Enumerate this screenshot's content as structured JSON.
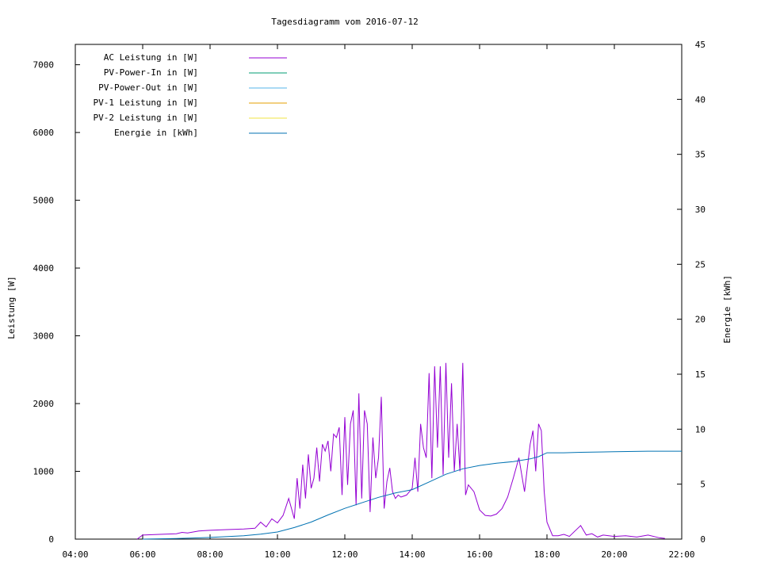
{
  "chart_data": {
    "type": "line",
    "title": "Tagesdiagramm vom 2016-07-12",
    "xlabel": "",
    "ylabel": "Leistung [W]",
    "y2label": "Energie [kWh]",
    "xlim": [
      "04:00",
      "22:00"
    ],
    "x_ticks": [
      "04:00",
      "06:00",
      "08:00",
      "10:00",
      "12:00",
      "14:00",
      "16:00",
      "18:00",
      "20:00",
      "22:00"
    ],
    "ylim": [
      0,
      7300
    ],
    "y_ticks": [
      0,
      1000,
      2000,
      3000,
      4000,
      5000,
      6000,
      7000
    ],
    "y2lim": [
      0,
      45
    ],
    "y2_ticks": [
      0,
      5,
      10,
      15,
      20,
      25,
      30,
      35,
      40,
      45
    ],
    "legend_position": "top-left",
    "grid": false,
    "series": [
      {
        "name": "AC Leistung in [W]",
        "axis": "left",
        "color": "#9400d3",
        "x": [
          "05:50",
          "06:00",
          "06:30",
          "07:00",
          "07:10",
          "07:20",
          "07:40",
          "08:00",
          "08:30",
          "09:00",
          "09:20",
          "09:30",
          "09:40",
          "09:50",
          "10:00",
          "10:10",
          "10:20",
          "10:30",
          "10:35",
          "10:40",
          "10:45",
          "10:50",
          "10:55",
          "11:00",
          "11:05",
          "11:10",
          "11:15",
          "11:20",
          "11:25",
          "11:30",
          "11:35",
          "11:40",
          "11:45",
          "11:50",
          "11:55",
          "12:00",
          "12:05",
          "12:10",
          "12:15",
          "12:20",
          "12:25",
          "12:30",
          "12:35",
          "12:40",
          "12:45",
          "12:50",
          "12:55",
          "13:00",
          "13:05",
          "13:10",
          "13:15",
          "13:20",
          "13:25",
          "13:30",
          "13:35",
          "13:40",
          "13:50",
          "14:00",
          "14:05",
          "14:10",
          "14:15",
          "14:20",
          "14:25",
          "14:30",
          "14:35",
          "14:40",
          "14:45",
          "14:50",
          "14:55",
          "15:00",
          "15:05",
          "15:10",
          "15:15",
          "15:20",
          "15:25",
          "15:30",
          "15:35",
          "15:40",
          "15:50",
          "16:00",
          "16:10",
          "16:20",
          "16:30",
          "16:40",
          "16:50",
          "17:00",
          "17:10",
          "17:20",
          "17:25",
          "17:30",
          "17:35",
          "17:40",
          "17:45",
          "17:50",
          "17:55",
          "18:00",
          "18:10",
          "18:20",
          "18:30",
          "18:40",
          "18:50",
          "19:00",
          "19:10",
          "19:20",
          "19:30",
          "19:40",
          "20:00",
          "20:20",
          "20:40",
          "21:00",
          "21:20",
          "21:30"
        ],
        "y": [
          0,
          60,
          70,
          80,
          100,
          90,
          120,
          130,
          140,
          150,
          160,
          250,
          180,
          300,
          240,
          350,
          600,
          300,
          900,
          450,
          1100,
          600,
          1250,
          750,
          900,
          1350,
          850,
          1400,
          1300,
          1450,
          1000,
          1550,
          1500,
          1650,
          650,
          1800,
          800,
          1700,
          1900,
          500,
          2150,
          600,
          1900,
          1700,
          400,
          1500,
          900,
          1200,
          2100,
          450,
          850,
          1050,
          700,
          600,
          650,
          620,
          650,
          750,
          1200,
          700,
          1700,
          1350,
          1200,
          2450,
          900,
          2550,
          1350,
          2550,
          950,
          2600,
          1200,
          2300,
          1000,
          1700,
          1000,
          2600,
          650,
          800,
          700,
          430,
          350,
          340,
          370,
          450,
          620,
          900,
          1200,
          700,
          1050,
          1400,
          1600,
          1000,
          1700,
          1600,
          700,
          250,
          50,
          50,
          70,
          40,
          120,
          200,
          60,
          80,
          30,
          60,
          40,
          50,
          30,
          60,
          20,
          10
        ]
      },
      {
        "name": "PV-Power-In in [W]",
        "axis": "left",
        "color": "#009e73",
        "x": [],
        "y": []
      },
      {
        "name": "PV-Power-Out in [W]",
        "axis": "left",
        "color": "#56b4e9",
        "x": [],
        "y": []
      },
      {
        "name": "PV-1 Leistung in [W]",
        "axis": "left",
        "color": "#e69f00",
        "x": [],
        "y": []
      },
      {
        "name": "PV-2 Leistung in [W]",
        "axis": "left",
        "color": "#f0e442",
        "x": [],
        "y": []
      },
      {
        "name": "Energie in [kWh]",
        "axis": "right",
        "color": "#0072b2",
        "x": [
          "06:00",
          "07:00",
          "08:00",
          "09:00",
          "09:30",
          "10:00",
          "10:30",
          "11:00",
          "11:30",
          "12:00",
          "12:30",
          "13:00",
          "13:30",
          "14:00",
          "14:30",
          "15:00",
          "15:30",
          "16:00",
          "16:30",
          "17:00",
          "17:30",
          "17:45",
          "18:00",
          "18:30",
          "19:00",
          "20:00",
          "21:00",
          "22:00"
        ],
        "y": [
          0,
          0.05,
          0.15,
          0.3,
          0.45,
          0.65,
          1.05,
          1.55,
          2.2,
          2.8,
          3.3,
          3.8,
          4.2,
          4.5,
          5.2,
          5.9,
          6.4,
          6.7,
          6.9,
          7.05,
          7.3,
          7.5,
          7.85,
          7.85,
          7.9,
          7.95,
          8.0,
          8.0
        ]
      }
    ]
  }
}
